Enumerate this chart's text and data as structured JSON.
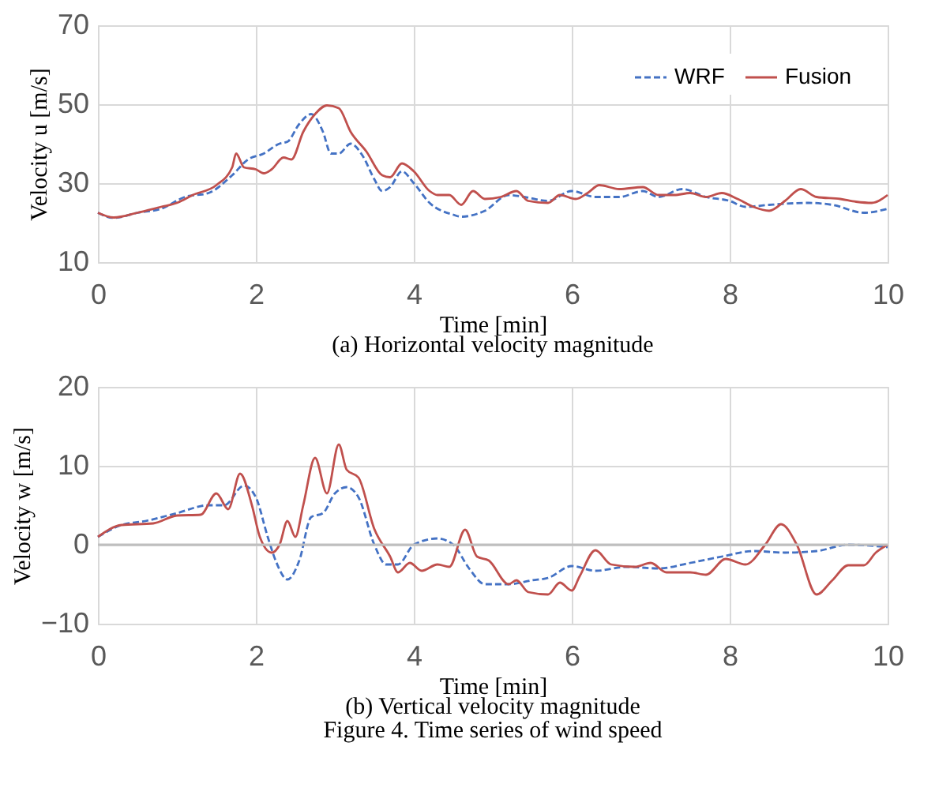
{
  "chart_data": [
    {
      "type": "line",
      "title": "(a) Horizontal velocity magnitude",
      "xlabel": "Time [min]",
      "ylabel": "Velocity u [m/s]",
      "xlim": [
        0,
        10
      ],
      "xticks": [
        0,
        2,
        4,
        6,
        8,
        10
      ],
      "ylim": [
        10,
        70
      ],
      "yticks": [
        10,
        30,
        50,
        70
      ],
      "grid": true,
      "legend": "top right",
      "series": [
        {
          "name": "WRF",
          "color": "#4472c4",
          "line_style": "dashed",
          "x": [
            0,
            0.2,
            0.5,
            0.8,
            1.1,
            1.4,
            1.7,
            1.9,
            2.1,
            2.3,
            2.4,
            2.55,
            2.7,
            2.85,
            2.95,
            3.05,
            3.2,
            3.35,
            3.5,
            3.6,
            3.7,
            3.85,
            4.0,
            4.2,
            4.5,
            4.6,
            4.9,
            5.2,
            5.4,
            5.7,
            6.0,
            6.3,
            6.6,
            6.9,
            7.1,
            7.4,
            7.7,
            8.0,
            8.2,
            8.5,
            9.0,
            9.3,
            9.7,
            10
          ],
          "values": [
            22.5,
            21.2,
            22.5,
            23.5,
            26.5,
            27.5,
            32,
            36,
            37.5,
            40,
            40.5,
            45,
            47.5,
            43,
            37.5,
            37.5,
            40,
            37,
            31,
            28,
            29,
            33,
            30,
            25,
            22,
            21.5,
            23,
            27,
            26.5,
            25.5,
            28,
            26.5,
            26.5,
            28,
            26.5,
            28.5,
            26.5,
            25.5,
            24,
            24.5,
            25,
            24.5,
            22.5,
            23.5
          ]
        },
        {
          "name": "Fusion",
          "color": "#c0504d",
          "line_style": "solid",
          "x": [
            0,
            0.2,
            0.5,
            0.8,
            1.0,
            1.2,
            1.5,
            1.7,
            1.75,
            1.85,
            2.0,
            2.1,
            2.2,
            2.35,
            2.45,
            2.6,
            2.75,
            2.9,
            3.05,
            3.2,
            3.4,
            3.6,
            3.7,
            3.85,
            4.0,
            4.2,
            4.3,
            4.45,
            4.6,
            4.75,
            4.9,
            5.1,
            5.3,
            5.45,
            5.7,
            5.85,
            6.05,
            6.2,
            6.35,
            6.6,
            6.9,
            7.1,
            7.3,
            7.5,
            7.7,
            7.9,
            8.1,
            8.3,
            8.5,
            8.7,
            8.9,
            9.1,
            9.4,
            9.6,
            9.8,
            10
          ],
          "values": [
            22.5,
            21.3,
            22.5,
            24,
            25,
            27,
            29.5,
            34,
            37.5,
            34,
            33.5,
            32.5,
            33.5,
            36.5,
            36,
            43,
            47.5,
            49.7,
            49,
            43,
            38,
            32,
            31.5,
            35,
            33,
            28,
            27,
            27,
            24.5,
            28,
            26,
            26.5,
            28,
            25.5,
            25,
            27,
            26,
            27.5,
            29.5,
            28.5,
            29,
            27,
            27,
            27.5,
            26.5,
            27.5,
            26,
            24,
            23,
            25.5,
            28.5,
            26.5,
            26,
            25.3,
            25,
            27
          ]
        }
      ]
    },
    {
      "type": "line",
      "title": "(b) Vertical velocity magnitude",
      "xlabel": "Time [min]",
      "ylabel": "Velocity w [m/s]",
      "xlim": [
        0,
        10
      ],
      "xticks": [
        0,
        2,
        4,
        6,
        8,
        10
      ],
      "ylim": [
        -10,
        20
      ],
      "yticks": [
        -10,
        0,
        10,
        20
      ],
      "grid": true,
      "ref_lines": [
        {
          "axis": "y",
          "value": 0,
          "color": "#bfbfbf"
        }
      ],
      "annotations": [
        "Figure 4. Time series of wind speed"
      ],
      "series": [
        {
          "color": "#4472c4",
          "line_style": "dashed",
          "x": [
            0,
            0.3,
            0.6,
            1.0,
            1.4,
            1.6,
            1.85,
            2.0,
            2.15,
            2.25,
            2.4,
            2.55,
            2.7,
            2.85,
            3.0,
            3.15,
            3.3,
            3.5,
            3.65,
            3.8,
            4.0,
            4.3,
            4.5,
            4.7,
            4.9,
            5.2,
            5.5,
            5.7,
            6.0,
            6.3,
            6.7,
            7.1,
            7.5,
            7.9,
            8.3,
            8.7,
            9.1,
            9.5,
            10
          ],
          "values": [
            1,
            2.5,
            3,
            4,
            5,
            5,
            7.5,
            6,
            1,
            -2,
            -4.4,
            -2,
            3.5,
            4,
            6.5,
            7.3,
            6,
            0,
            -2.5,
            -2.5,
            0,
            0.8,
            0,
            -3,
            -5,
            -5,
            -4.5,
            -4.2,
            -2.7,
            -3.3,
            -2.8,
            -3,
            -2.3,
            -1.5,
            -0.8,
            -1,
            -0.8,
            0,
            -0.3
          ]
        },
        {
          "color": "#c0504d",
          "line_style": "solid",
          "x": [
            0,
            0.3,
            0.7,
            1.0,
            1.3,
            1.5,
            1.65,
            1.8,
            1.95,
            2.05,
            2.2,
            2.3,
            2.4,
            2.5,
            2.6,
            2.75,
            2.9,
            3.05,
            3.15,
            3.3,
            3.5,
            3.7,
            3.8,
            3.95,
            4.1,
            4.3,
            4.45,
            4.65,
            4.8,
            4.95,
            5.2,
            5.3,
            5.45,
            5.7,
            5.85,
            6.0,
            6.1,
            6.3,
            6.5,
            6.8,
            7.0,
            7.2,
            7.5,
            7.7,
            7.95,
            8.2,
            8.45,
            8.65,
            8.85,
            9.1,
            9.3,
            9.5,
            9.7,
            9.85,
            10
          ],
          "values": [
            1,
            2.5,
            2.7,
            3.7,
            3.8,
            6.5,
            4.5,
            9,
            5,
            1,
            -1,
            0,
            3,
            1,
            5,
            11,
            6.5,
            12.7,
            9.5,
            8.5,
            2,
            -1.5,
            -3.5,
            -2.3,
            -3.3,
            -2.5,
            -2.8,
            1.9,
            -1.5,
            -2,
            -5,
            -4.5,
            -6,
            -6.3,
            -4.8,
            -5.8,
            -4,
            -0.7,
            -2.5,
            -2.8,
            -2.3,
            -3.5,
            -3.5,
            -3.8,
            -1.8,
            -2.5,
            0,
            2.6,
            0,
            -6.3,
            -4.5,
            -2.6,
            -2.6,
            -1,
            0
          ]
        }
      ]
    }
  ]
}
